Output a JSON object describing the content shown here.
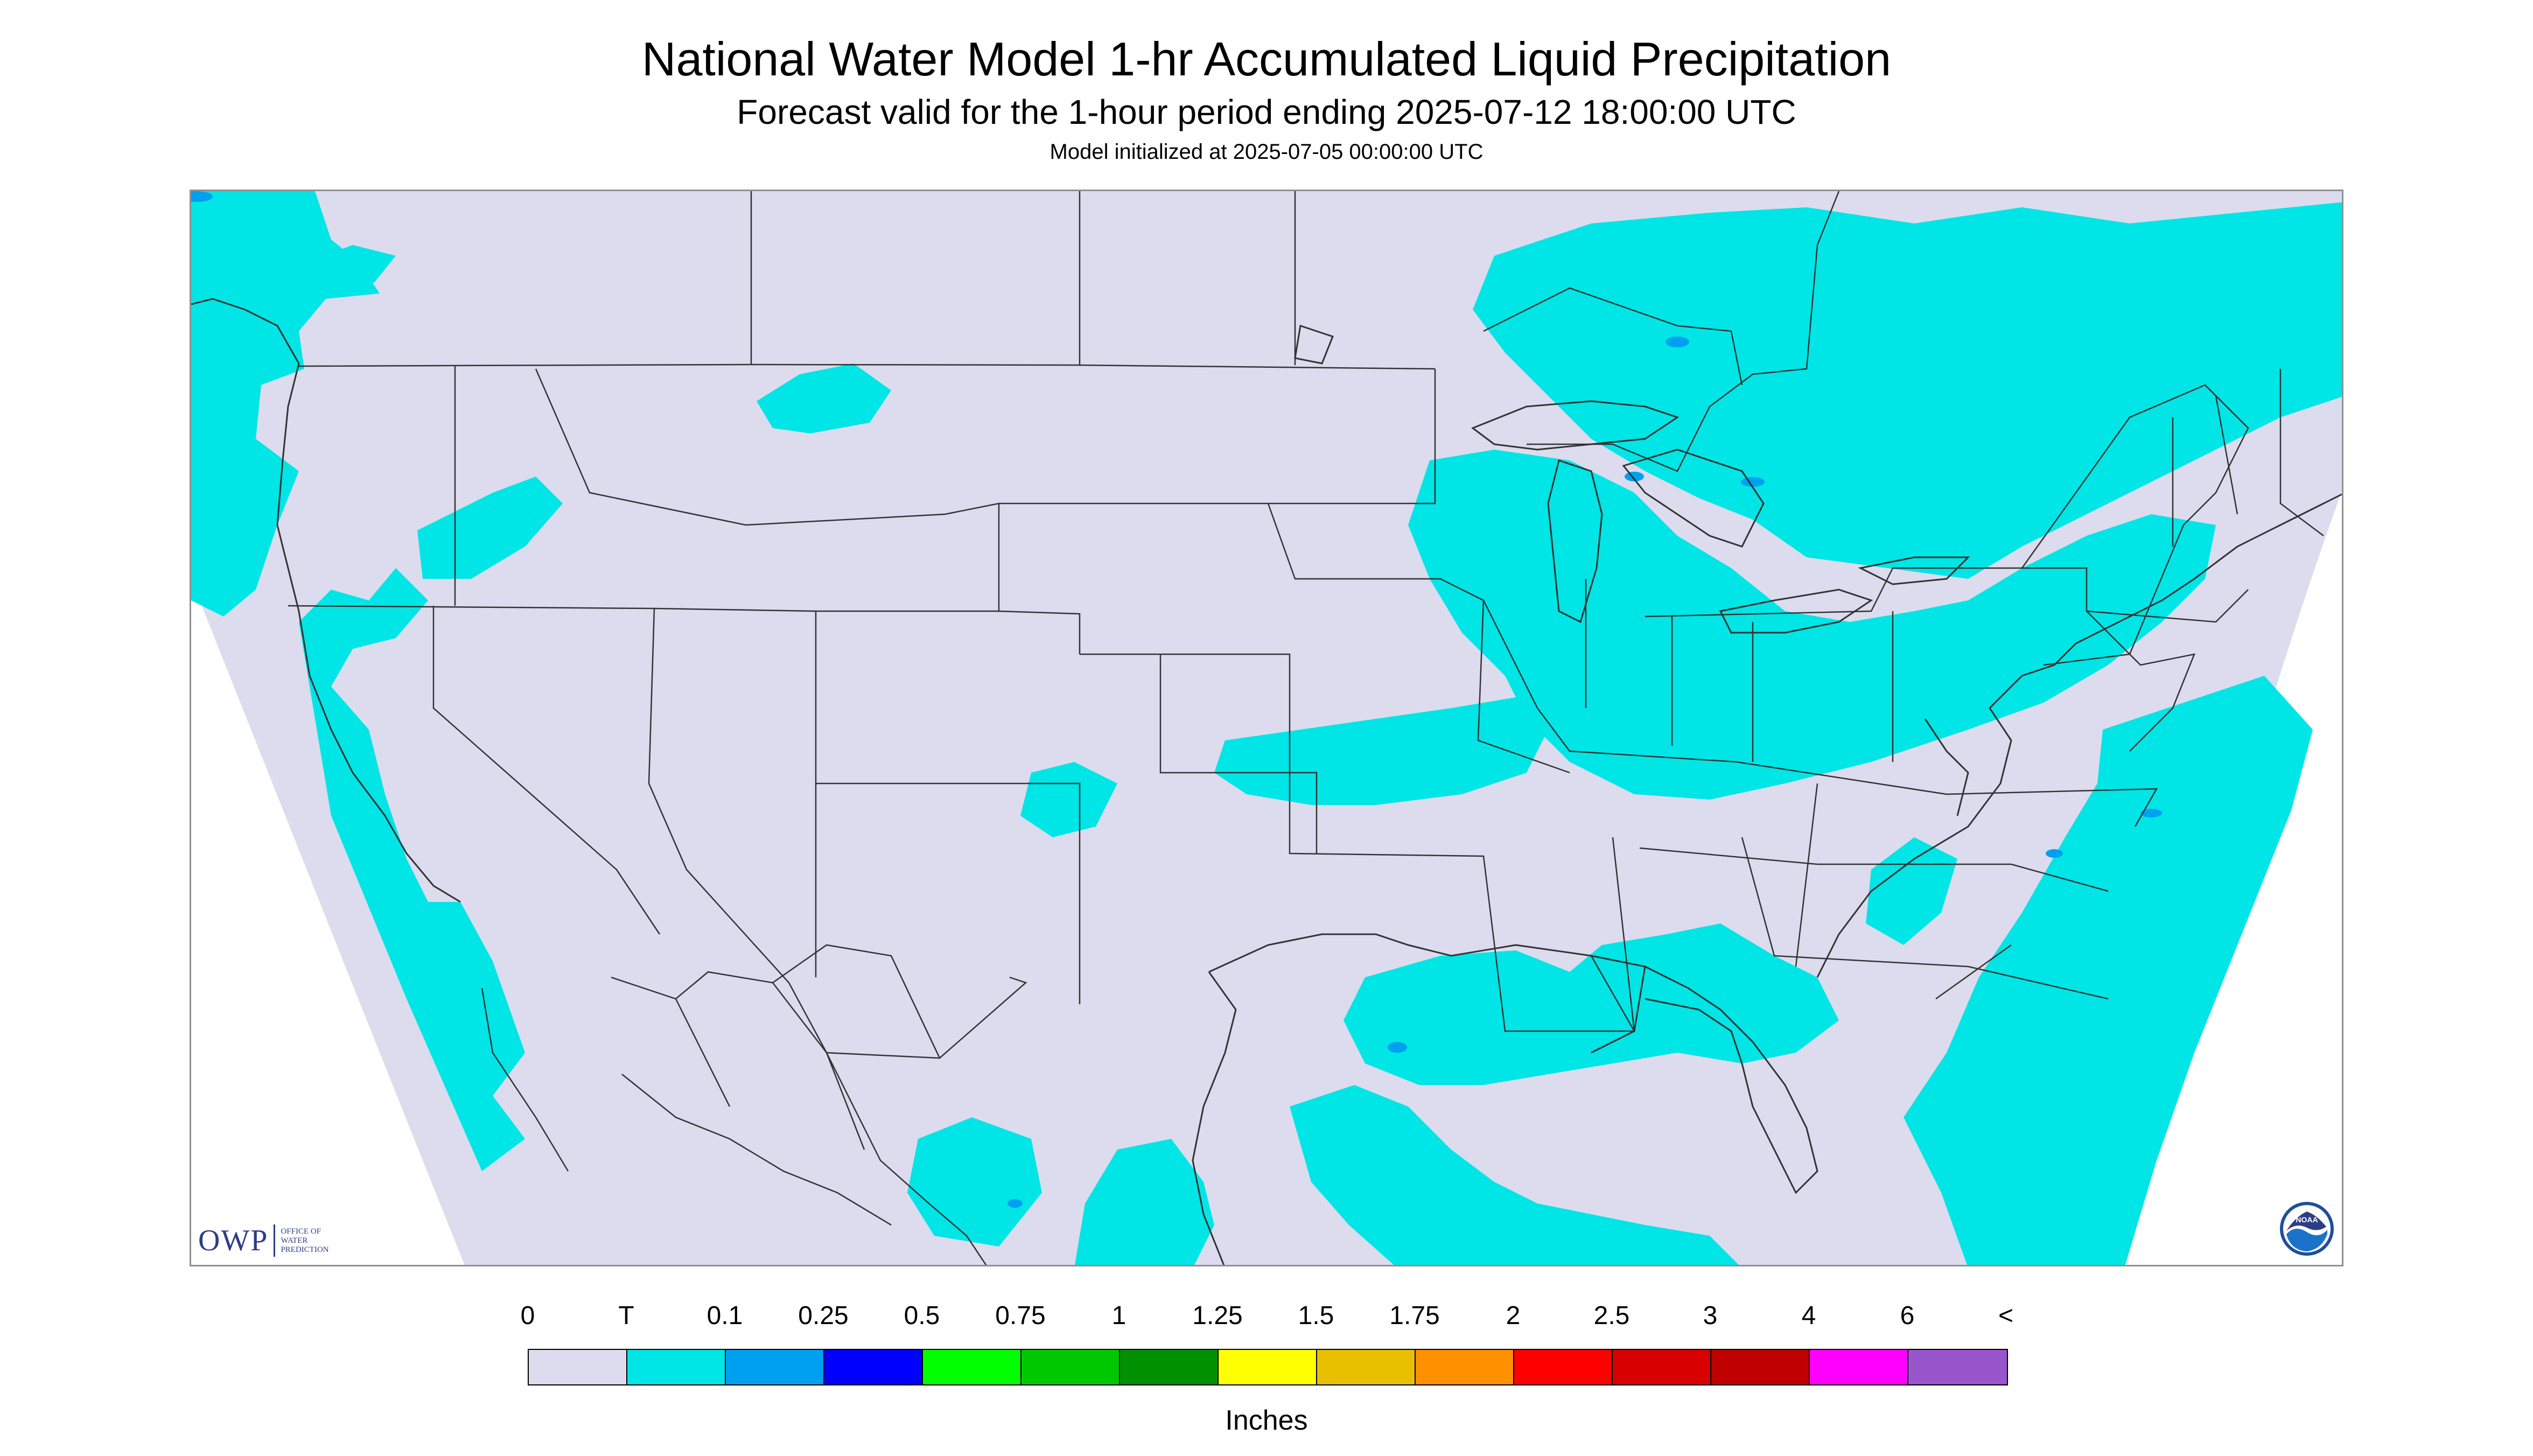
{
  "header": {
    "title": "National Water Model 1-hr Accumulated Liquid Precipitation",
    "subtitle": "Forecast valid for the 1-hour period ending 2025-07-12 18:00:00 UTC",
    "init": "Model initialized at 2025-07-05 00:00:00 UTC"
  },
  "map": {
    "background_color": "#dcdcee",
    "trace_color": "#00e5e5",
    "light_color": "#00a0f0",
    "border_color": "#333333"
  },
  "logos": {
    "owp": {
      "mark": "OWP",
      "line1": "OFFICE OF",
      "line2": "WATER",
      "line3": "PREDICTION"
    },
    "noaa": {
      "icon": "noaa-logo-icon",
      "text": "NOAA"
    }
  },
  "legend": {
    "labels": [
      "0",
      "T",
      "0.1",
      "0.25",
      "0.5",
      "0.75",
      "1",
      "1.25",
      "1.5",
      "1.75",
      "2",
      "2.5",
      "3",
      "4",
      "6",
      "<"
    ],
    "colors": [
      "#dcdcee",
      "#00e5e5",
      "#00a0f0",
      "#0000ff",
      "#00ff00",
      "#00c800",
      "#009000",
      "#ffff00",
      "#e8c000",
      "#ff9000",
      "#ff0000",
      "#d80000",
      "#c00000",
      "#ff00ff",
      "#9955cc"
    ],
    "units": "Inches"
  }
}
